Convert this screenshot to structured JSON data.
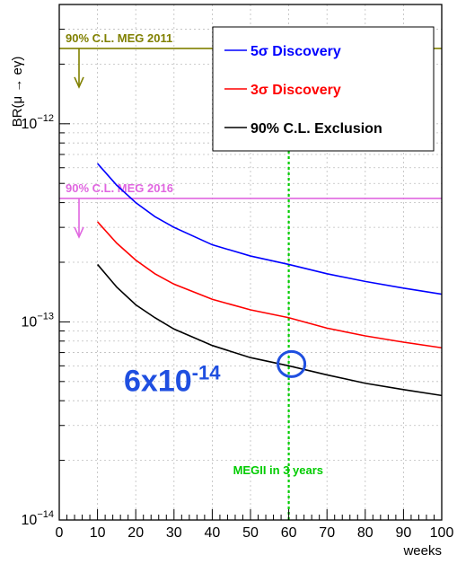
{
  "chart_data": {
    "type": "line",
    "xlabel": "weeks",
    "ylabel": "BR(μ → eγ)",
    "xlim": [
      0,
      100
    ],
    "ylim": [
      1e-14,
      4e-12
    ],
    "yscale": "log",
    "grid": true,
    "x_ticks": [
      "0",
      "10",
      "20",
      "30",
      "40",
      "50",
      "60",
      "70",
      "80",
      "90",
      "100"
    ],
    "y_ticks": [
      {
        "base": "10",
        "exp": "−12",
        "value": 1e-12
      },
      {
        "base": "10",
        "exp": "−13",
        "value": 1e-13
      },
      {
        "base": "10",
        "exp": "−14",
        "value": 1e-14
      }
    ],
    "legend_position": "top-right",
    "series": [
      {
        "name": "5σ Discovery",
        "color": "#0000ff",
        "x": [
          10,
          15,
          20,
          25,
          30,
          40,
          50,
          60,
          70,
          80,
          90,
          100
        ],
        "y": [
          6.3e-13,
          4.9e-13,
          4e-13,
          3.4e-13,
          3e-13,
          2.45e-13,
          2.15e-13,
          1.95e-13,
          1.75e-13,
          1.6e-13,
          1.48e-13,
          1.38e-13
        ]
      },
      {
        "name": "3σ Discovery",
        "color": "#ff0000",
        "x": [
          10,
          15,
          20,
          25,
          30,
          40,
          50,
          60,
          70,
          80,
          90,
          100
        ],
        "y": [
          3.2e-13,
          2.5e-13,
          2.05e-13,
          1.75e-13,
          1.55e-13,
          1.3e-13,
          1.15e-13,
          1.05e-13,
          9.3e-14,
          8.5e-14,
          7.9e-14,
          7.4e-14
        ]
      },
      {
        "name": "90% C.L. Exclusion",
        "color": "#000000",
        "x": [
          10,
          15,
          20,
          25,
          30,
          40,
          50,
          60,
          70,
          80,
          90,
          100
        ],
        "y": [
          1.95e-13,
          1.5e-13,
          1.22e-13,
          1.05e-13,
          9.2e-14,
          7.6e-14,
          6.6e-14,
          6e-14,
          5.4e-14,
          4.9e-14,
          4.55e-14,
          4.25e-14
        ]
      }
    ],
    "reference_lines": [
      {
        "label": "90% C.L.  MEG 2011",
        "value": 2.4e-12,
        "color": "#808000"
      },
      {
        "label": "90% C.L.  MEG 2016",
        "value": 4.2e-13,
        "color": "#e066e0"
      }
    ],
    "vertical_line": {
      "x": 60,
      "label": "MEGII in 3 years",
      "color": "#00cc00"
    },
    "highlight": {
      "x": 60,
      "y": 6e-14,
      "label_base": "6x10",
      "label_exp": "-14",
      "color": "#1f4fe0"
    }
  }
}
